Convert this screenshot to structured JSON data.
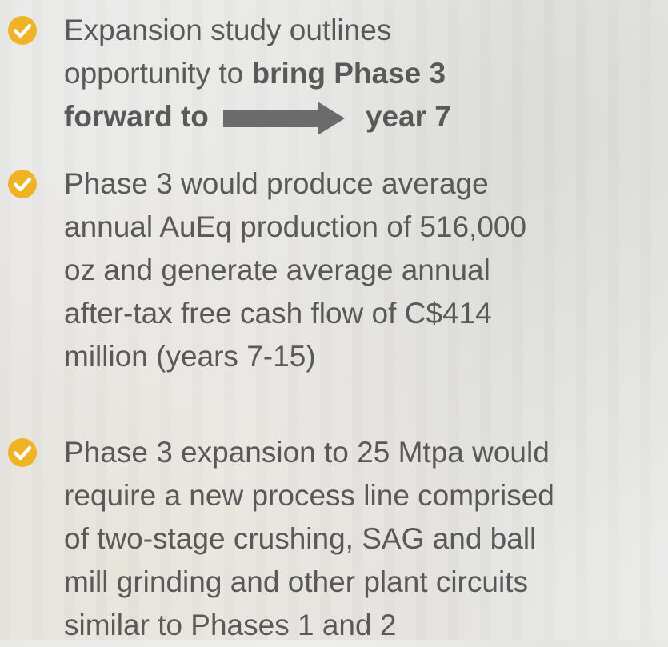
{
  "bullets": [
    {
      "lines": [
        "Expansion study outlines",
        "opportunity to ",
        "bring Phase 3",
        "forward to",
        "year 7"
      ]
    },
    {
      "lines": [
        "Phase 3 would produce average",
        "annual AuEq production of 516,000",
        "oz and generate average annual",
        "after-tax free cash flow of C$414",
        "million (years 7-15)"
      ]
    },
    {
      "lines": [
        "Phase 3 expansion to 25 Mtpa would",
        "require a new process line comprised",
        "of two-stage crushing, SAG and ball",
        "mill grinding and other plant circuits",
        "similar to Phases 1 and 2"
      ]
    }
  ]
}
